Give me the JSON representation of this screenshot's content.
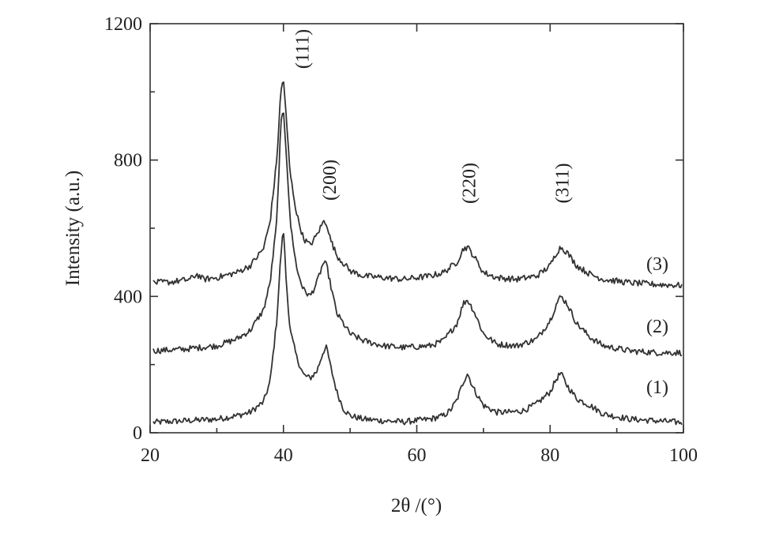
{
  "chart_data": {
    "type": "line",
    "title": "",
    "xlabel": "2θ /(°)",
    "ylabel": "Intensity (a.u.)",
    "xlim": [
      20,
      100
    ],
    "ylim": [
      0,
      1200
    ],
    "xticks": [
      "20",
      "40",
      "60",
      "80",
      "100"
    ],
    "yticks": [
      "0",
      "400",
      "800",
      "1200"
    ],
    "grid": false,
    "legend": "none",
    "peak_labels": [
      {
        "text": "(111)",
        "x": 40.2
      },
      {
        "text": "(200)",
        "x": 46.4
      },
      {
        "text": "(220)",
        "x": 67.6
      },
      {
        "text": "(311)",
        "x": 81.6
      }
    ],
    "series": [
      {
        "name": "(1)",
        "x": [
          20,
          25,
          30,
          33,
          35,
          37,
          38,
          39,
          39.6,
          40,
          40.4,
          41,
          42,
          43,
          44,
          45,
          46,
          46.5,
          47,
          48,
          49,
          50,
          52,
          55,
          58,
          62,
          64,
          65,
          66,
          67,
          67.6,
          68.5,
          70,
          72,
          74,
          76,
          78,
          80,
          81,
          81.6,
          82.5,
          84,
          86,
          88,
          92,
          96,
          100
        ],
        "values": [
          30,
          35,
          40,
          50,
          60,
          90,
          150,
          330,
          520,
          600,
          450,
          300,
          220,
          170,
          160,
          180,
          240,
          250,
          200,
          120,
          70,
          50,
          40,
          35,
          32,
          40,
          50,
          65,
          95,
          150,
          175,
          130,
          80,
          60,
          60,
          65,
          85,
          120,
          160,
          175,
          140,
          100,
          80,
          55,
          40,
          35,
          30
        ]
      },
      {
        "name": "(2)",
        "x": [
          20,
          25,
          30,
          33,
          35,
          37,
          38,
          39,
          39.6,
          40,
          40.5,
          41,
          42,
          43,
          44,
          45,
          46,
          46.5,
          47,
          48,
          50,
          52,
          55,
          58,
          62,
          64,
          66,
          67,
          67.6,
          68.5,
          70,
          72,
          75,
          78,
          80,
          81,
          81.6,
          82.5,
          84,
          86,
          88,
          92,
          96,
          100
        ],
        "values": [
          240,
          245,
          255,
          275,
          300,
          360,
          440,
          620,
          900,
          950,
          800,
          620,
          480,
          420,
          400,
          440,
          500,
          490,
          440,
          350,
          290,
          270,
          255,
          250,
          255,
          270,
          320,
          380,
          390,
          360,
          290,
          260,
          255,
          275,
          330,
          380,
          400,
          380,
          320,
          280,
          255,
          240,
          235,
          235
        ]
      },
      {
        "name": "(3)",
        "x": [
          20,
          23,
          26,
          27,
          28,
          30,
          33,
          35,
          37,
          38,
          39,
          39.6,
          40,
          40.5,
          41,
          42,
          43,
          44,
          45,
          46,
          46.5,
          47,
          48,
          50,
          52,
          55,
          58,
          62,
          64,
          66,
          67,
          67.6,
          68.5,
          70,
          72,
          75,
          78,
          80,
          81,
          81.6,
          82.5,
          84,
          86,
          88,
          92,
          96,
          100
        ],
        "values": [
          440,
          442,
          450,
          465,
          450,
          455,
          470,
          490,
          540,
          620,
          800,
          1000,
          1040,
          900,
          760,
          640,
          570,
          550,
          580,
          620,
          615,
          570,
          520,
          475,
          460,
          455,
          450,
          460,
          470,
          500,
          540,
          545,
          520,
          470,
          455,
          450,
          460,
          490,
          530,
          545,
          530,
          490,
          465,
          450,
          440,
          435,
          432
        ]
      }
    ]
  }
}
